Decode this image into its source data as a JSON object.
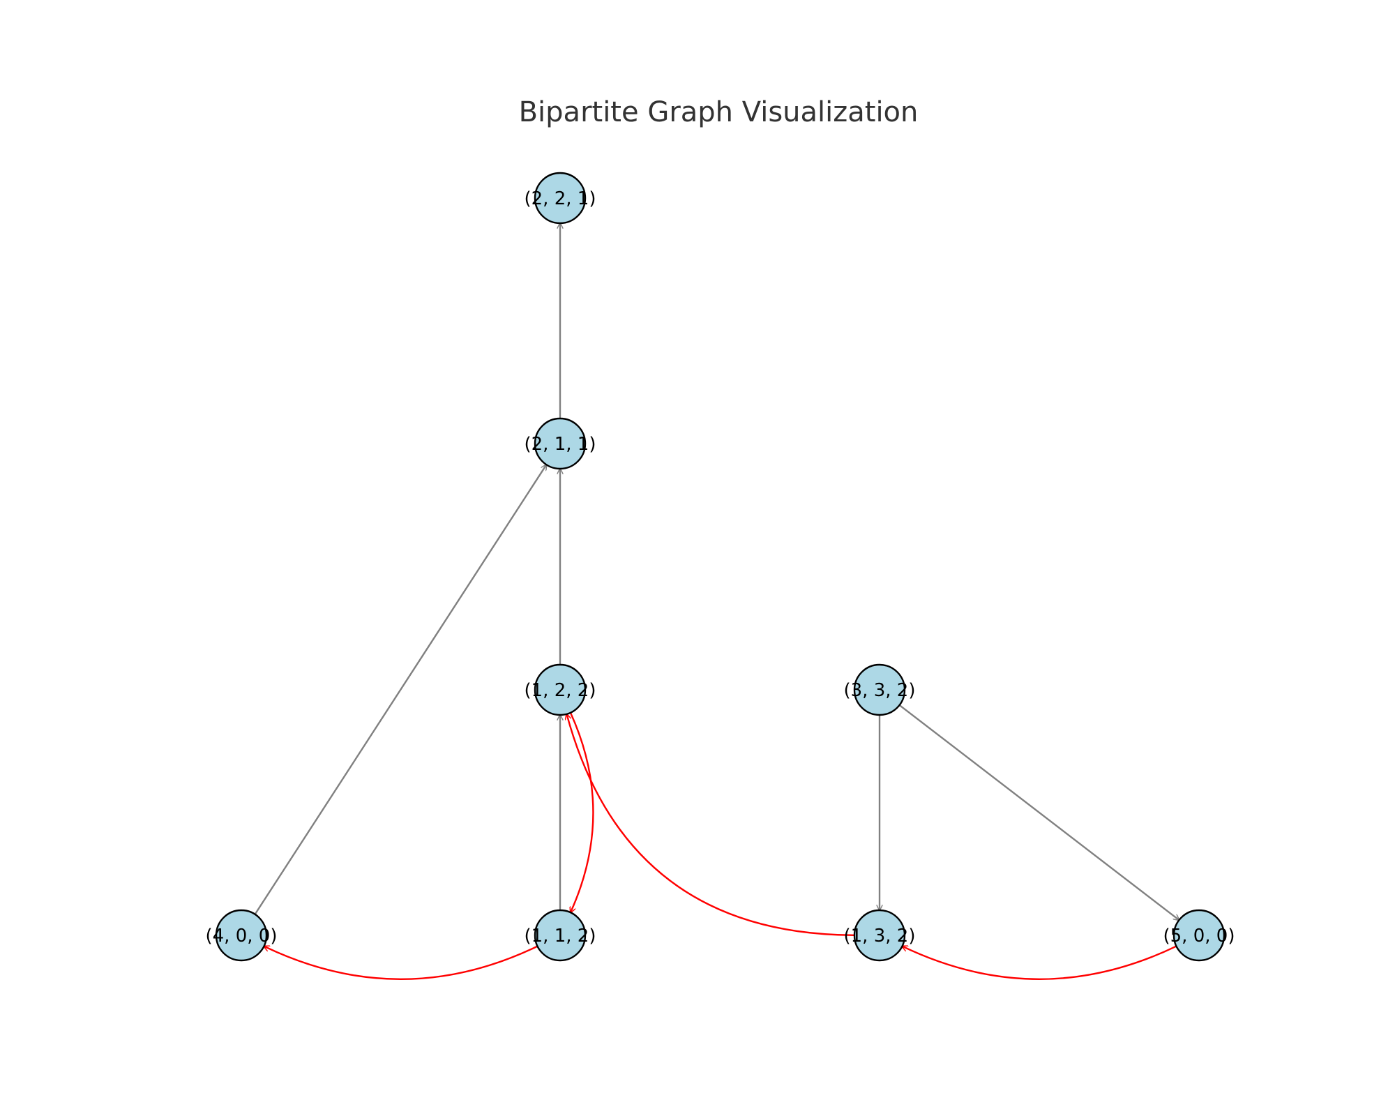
{
  "title": "Bipartite Graph Visualization",
  "colors": {
    "node_fill": "#add8e6",
    "node_stroke": "#000000",
    "edge_default": "#808080",
    "edge_highlight": "#ff0000",
    "title": "#333333"
  },
  "nodes": [
    {
      "id": "221",
      "label": "(2, 2, 1)"
    },
    {
      "id": "211",
      "label": "(2, 1, 1)"
    },
    {
      "id": "122",
      "label": "(1, 2, 2)"
    },
    {
      "id": "332",
      "label": "(3, 3, 2)"
    },
    {
      "id": "400",
      "label": "(4, 0, 0)"
    },
    {
      "id": "112",
      "label": "(1, 1, 2)"
    },
    {
      "id": "132",
      "label": "(1, 3, 2)"
    },
    {
      "id": "500",
      "label": "(5, 0, 0)"
    }
  ],
  "edges": [
    {
      "from": "211",
      "to": "221",
      "style": "default"
    },
    {
      "from": "122",
      "to": "211",
      "style": "default"
    },
    {
      "from": "400",
      "to": "211",
      "style": "default"
    },
    {
      "from": "112",
      "to": "122",
      "style": "default"
    },
    {
      "from": "332",
      "to": "132",
      "style": "default"
    },
    {
      "from": "332",
      "to": "500",
      "style": "default"
    },
    {
      "from": "122",
      "to": "112",
      "style": "highlight"
    },
    {
      "from": "112",
      "to": "400",
      "style": "highlight"
    },
    {
      "from": "132",
      "to": "122",
      "style": "highlight"
    },
    {
      "from": "500",
      "to": "132",
      "style": "highlight"
    }
  ]
}
